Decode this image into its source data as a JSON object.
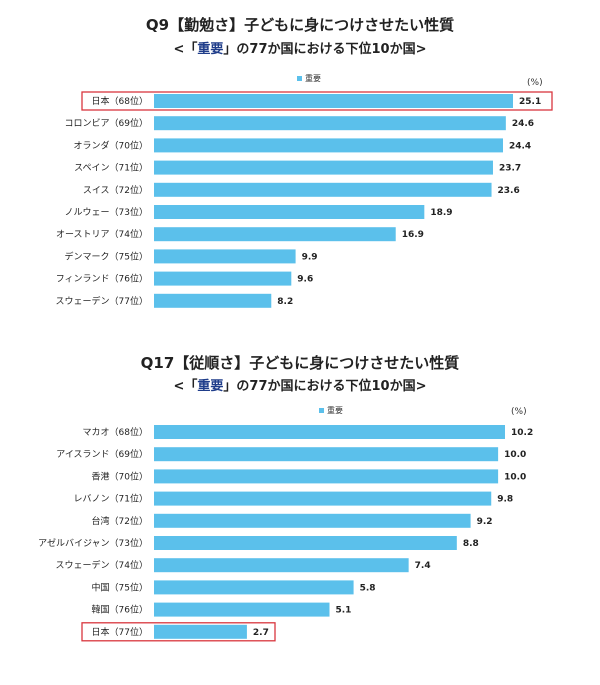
{
  "chart_data": [
    {
      "type": "bar",
      "orientation": "horizontal",
      "title": "Q9【勤勉さ】子どもに身につけさせたい性質",
      "subtitle_prefix": "<「",
      "subtitle_highlight": "重要",
      "subtitle_suffix": "」の77か国における下位10か国>",
      "legend": "重要",
      "unit": "(%)",
      "xlim": [
        0,
        25.1
      ],
      "categories": [
        "日本（68位）",
        "コロンビア（69位）",
        "オランダ（70位）",
        "スペイン（71位）",
        "スイス（72位）",
        "ノルウェー（73位）",
        "オーストリア（74位）",
        "デンマーク（75位）",
        "フィンランド（76位）",
        "スウェーデン（77位）"
      ],
      "series": [
        {
          "name": "重要",
          "values": [
            25.1,
            24.6,
            24.4,
            23.7,
            23.6,
            18.9,
            16.9,
            9.9,
            9.6,
            8.2
          ]
        }
      ],
      "value_labels": [
        "25.1",
        "24.6",
        "24.4",
        "23.7",
        "23.6",
        "18.9",
        "16.9",
        "9.9",
        "9.6",
        "8.2"
      ],
      "highlighted_index": 0,
      "bar_color": "#5bc0eb",
      "highlight_color": "#d9363e"
    },
    {
      "type": "bar",
      "orientation": "horizontal",
      "title": "Q17【従順さ】子どもに身につけさせたい性質",
      "subtitle_prefix": "<「",
      "subtitle_highlight": "重要",
      "subtitle_suffix": "」の77か国における下位10か国>",
      "legend": "重要",
      "unit": "(%)",
      "xlim": [
        0,
        10.2
      ],
      "categories": [
        "マカオ（68位）",
        "アイスランド（69位）",
        "香港（70位）",
        "レバノン（71位）",
        "台湾（72位）",
        "アゼルバイジャン（73位）",
        "スウェーデン（74位）",
        "中国（75位）",
        "韓国（76位）",
        "日本（77位）"
      ],
      "series": [
        {
          "name": "重要",
          "values": [
            10.2,
            10.0,
            10.0,
            9.8,
            9.2,
            8.8,
            7.4,
            5.8,
            5.1,
            2.7
          ]
        }
      ],
      "value_labels": [
        "10.2",
        "10.0",
        "10.0",
        "9.8",
        "9.2",
        "8.8",
        "7.4",
        "5.8",
        "5.1",
        "2.7"
      ],
      "highlighted_index": 9,
      "bar_color": "#5bc0eb",
      "highlight_color": "#d9363e"
    }
  ]
}
